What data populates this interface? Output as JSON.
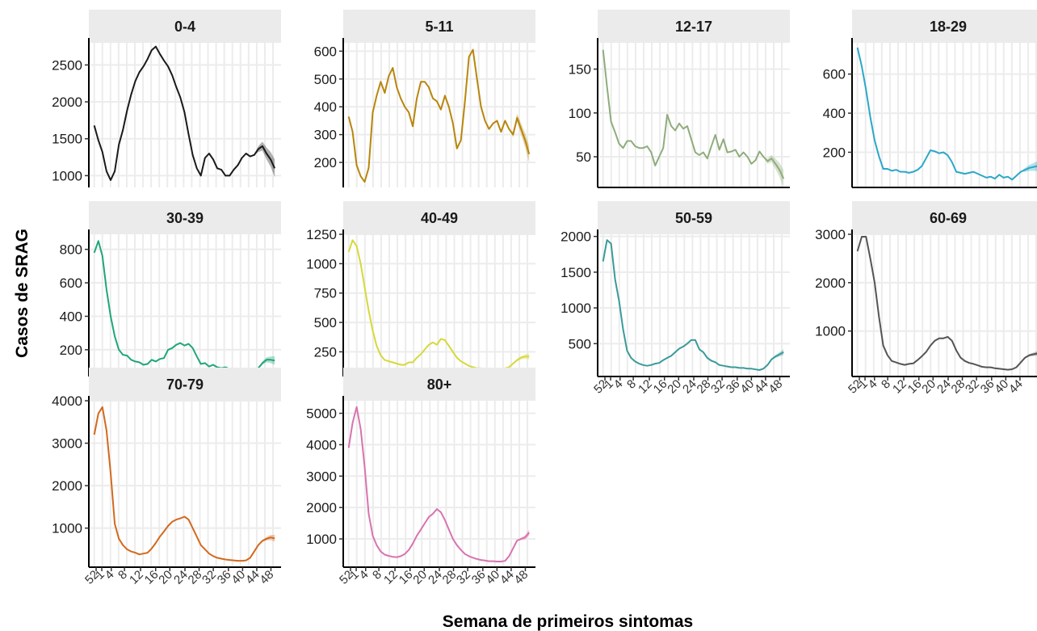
{
  "figure": {
    "ylabel": "Casos de SRAG",
    "xlabel": "Semana de primeiros sintomas"
  },
  "chart_data": {
    "type": "line",
    "x_ticks": [
      "52",
      "1",
      "4",
      "8",
      "12",
      "16",
      "20",
      "24",
      "28",
      "32",
      "36",
      "40",
      "44",
      "48"
    ],
    "grid": true,
    "panels": [
      {
        "title": "0-4",
        "color": "#1a1a1a",
        "ylim": [
          840,
          2800
        ],
        "yticks": [
          1000,
          1500,
          2000,
          2500
        ],
        "values": [
          1680,
          1480,
          1320,
          1060,
          940,
          1060,
          1420,
          1620,
          1880,
          2100,
          2280,
          2400,
          2480,
          2580,
          2700,
          2750,
          2650,
          2560,
          2480,
          2360,
          2200,
          2060,
          1860,
          1560,
          1280,
          1100,
          1000,
          1240,
          1300,
          1220,
          1100,
          1080,
          1000,
          1000,
          1080,
          1140,
          1240,
          1300,
          1260,
          1280,
          1360,
          1400,
          1300,
          1220,
          1100
        ],
        "tail_spread": [
          0,
          0,
          0,
          40,
          60,
          80,
          100,
          120
        ]
      },
      {
        "title": "5-11",
        "color": "#b8860b",
        "ylim": [
          110,
          630
        ],
        "yticks": [
          200,
          300,
          400,
          500,
          600
        ],
        "values": [
          365,
          310,
          190,
          150,
          130,
          180,
          380,
          440,
          490,
          450,
          510,
          540,
          470,
          430,
          400,
          380,
          330,
          430,
          490,
          490,
          470,
          430,
          420,
          390,
          440,
          400,
          340,
          250,
          280,
          420,
          580,
          605,
          500,
          400,
          350,
          320,
          340,
          350,
          310,
          350,
          320,
          300,
          360,
          320,
          280,
          230
        ],
        "tail_spread": [
          0,
          0,
          0,
          10,
          15,
          20,
          25,
          30
        ]
      },
      {
        "title": "12-17",
        "color": "#8fac7c",
        "ylim": [
          15,
          180
        ],
        "yticks": [
          50,
          100,
          150
        ],
        "values": [
          172,
          130,
          90,
          78,
          65,
          60,
          68,
          68,
          62,
          60,
          60,
          62,
          55,
          40,
          50,
          60,
          98,
          85,
          80,
          88,
          82,
          85,
          70,
          55,
          52,
          55,
          48,
          62,
          75,
          58,
          70,
          55,
          56,
          58,
          50,
          55,
          50,
          42,
          46,
          56,
          50,
          45,
          48,
          42,
          35,
          25
        ],
        "tail_spread": [
          0,
          0,
          0,
          3,
          4,
          6,
          8,
          10
        ]
      },
      {
        "title": "18-29",
        "color": "#2aa8c8",
        "ylim": [
          20,
          760
        ],
        "yticks": [
          200,
          400,
          600
        ],
        "values": [
          735,
          640,
          520,
          380,
          260,
          180,
          115,
          115,
          105,
          110,
          100,
          100,
          95,
          100,
          110,
          130,
          170,
          210,
          205,
          195,
          200,
          185,
          150,
          100,
          95,
          90,
          95,
          100,
          90,
          80,
          70,
          75,
          65,
          85,
          70,
          75,
          60,
          80,
          100,
          110,
          120,
          125,
          130
        ],
        "tail_spread": [
          0,
          0,
          0,
          10,
          15,
          20,
          25
        ]
      },
      {
        "title": "30-39",
        "color": "#1fa67a",
        "ylim": [
          40,
          890
        ],
        "yticks": [
          200,
          400,
          600,
          800
        ],
        "values": [
          780,
          850,
          760,
          560,
          400,
          280,
          200,
          170,
          165,
          140,
          130,
          125,
          110,
          115,
          140,
          130,
          145,
          150,
          200,
          210,
          230,
          240,
          225,
          235,
          210,
          160,
          115,
          120,
          100,
          110,
          95,
          90,
          95,
          85,
          80,
          80,
          85,
          75,
          70,
          65,
          90,
          120,
          140,
          140,
          135
        ],
        "tail_spread": [
          0,
          0,
          0,
          10,
          15,
          20,
          25
        ]
      },
      {
        "title": "40-49",
        "color": "#d6d93a",
        "ylim": [
          40,
          1250
        ],
        "yticks": [
          250,
          500,
          750,
          1000,
          1250
        ],
        "values": [
          1100,
          1200,
          1150,
          1000,
          800,
          600,
          430,
          300,
          220,
          180,
          170,
          160,
          150,
          140,
          140,
          160,
          160,
          200,
          230,
          270,
          310,
          330,
          310,
          360,
          350,
          300,
          250,
          200,
          170,
          150,
          130,
          120,
          110,
          110,
          100,
          90,
          90,
          100,
          100,
          110,
          120,
          150,
          180,
          200,
          210,
          210
        ],
        "tail_spread": [
          0,
          0,
          0,
          10,
          15,
          20,
          25
        ]
      },
      {
        "title": "50-59",
        "color": "#3a9a9a",
        "ylim": [
          40,
          2030
        ],
        "yticks": [
          500,
          1000,
          1500,
          2000
        ],
        "values": [
          1650,
          1950,
          1900,
          1400,
          1100,
          700,
          400,
          300,
          250,
          220,
          200,
          190,
          200,
          220,
          230,
          270,
          300,
          330,
          380,
          430,
          460,
          500,
          550,
          550,
          420,
          380,
          300,
          260,
          240,
          200,
          190,
          180,
          170,
          170,
          160,
          160,
          150,
          150,
          140,
          130,
          150,
          200,
          280,
          320,
          350,
          380
        ],
        "tail_spread": [
          0,
          0,
          0,
          10,
          20,
          30,
          40
        ]
      },
      {
        "title": "60-69",
        "color": "#555555",
        "ylim": [
          60,
          3000
        ],
        "yticks": [
          1000,
          2000,
          3000
        ],
        "values": [
          2650,
          2950,
          2950,
          2500,
          2000,
          1300,
          700,
          500,
          380,
          350,
          320,
          300,
          320,
          330,
          400,
          480,
          570,
          700,
          800,
          850,
          850,
          880,
          800,
          600,
          450,
          380,
          340,
          320,
          290,
          260,
          250,
          250,
          230,
          220,
          210,
          200,
          210,
          250,
          350,
          450,
          500,
          520,
          540
        ],
        "tail_spread": [
          0,
          0,
          0,
          15,
          25,
          35,
          45
        ]
      },
      {
        "title": "70-79",
        "color": "#d2691e",
        "ylim": [
          80,
          4000
        ],
        "yticks": [
          1000,
          2000,
          3000,
          4000
        ],
        "values": [
          3200,
          3700,
          3850,
          3300,
          2300,
          1100,
          750,
          600,
          500,
          450,
          420,
          380,
          400,
          420,
          520,
          650,
          800,
          920,
          1050,
          1150,
          1200,
          1230,
          1270,
          1200,
          1000,
          800,
          600,
          500,
          400,
          340,
          300,
          280,
          260,
          250,
          240,
          230,
          230,
          240,
          300,
          450,
          600,
          700,
          750,
          780,
          760
        ],
        "tail_spread": [
          0,
          0,
          0,
          20,
          40,
          60,
          80
        ]
      },
      {
        "title": "80+",
        "color": "#d873b0",
        "ylim": [
          100,
          5400
        ],
        "yticks": [
          1000,
          2000,
          3000,
          4000,
          5000
        ],
        "values": [
          3900,
          4700,
          5200,
          4500,
          3300,
          1800,
          1100,
          800,
          600,
          500,
          460,
          430,
          420,
          450,
          520,
          650,
          850,
          1100,
          1300,
          1500,
          1700,
          1800,
          1950,
          1850,
          1600,
          1300,
          1000,
          800,
          650,
          520,
          450,
          400,
          360,
          330,
          310,
          290,
          290,
          280,
          280,
          300,
          450,
          700,
          950,
          1000,
          1050,
          1200
        ],
        "tail_spread": [
          0,
          0,
          0,
          20,
          40,
          70,
          100
        ]
      }
    ]
  }
}
